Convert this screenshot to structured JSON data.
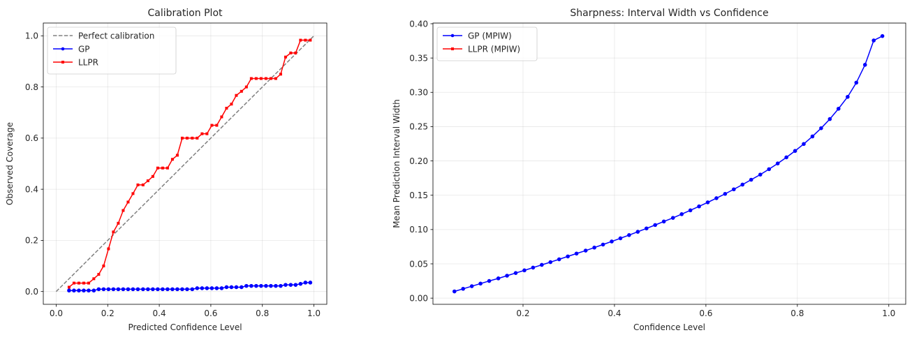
{
  "chart_data": [
    {
      "type": "line",
      "title": "Calibration Plot",
      "xlabel": "Predicted Confidence Level",
      "ylabel": "Observed Coverage",
      "xlim": [
        -0.05,
        1.05
      ],
      "ylim": [
        -0.05,
        1.05
      ],
      "xticks": [
        0.0,
        0.2,
        0.4,
        0.6,
        0.8,
        1.0
      ],
      "yticks": [
        0.0,
        0.2,
        0.4,
        0.6,
        0.8,
        1.0
      ],
      "xtick_labels": [
        "0.0",
        "0.2",
        "0.4",
        "0.6",
        "0.8",
        "1.0"
      ],
      "ytick_labels": [
        "0.0",
        "0.2",
        "0.4",
        "0.6",
        "0.8",
        "1.0"
      ],
      "grid": true,
      "legend_position": "top-left",
      "series": [
        {
          "name": "Perfect calibration",
          "color": "#808080",
          "style": "dashed",
          "marker": "none",
          "x": [
            0.0,
            1.0
          ],
          "y": [
            0.0,
            1.0
          ]
        },
        {
          "name": "GP",
          "color": "#0000ff",
          "style": "solid",
          "marker": "circle",
          "x": [
            0.05,
            0.069,
            0.088,
            0.107,
            0.126,
            0.146,
            0.165,
            0.184,
            0.203,
            0.222,
            0.241,
            0.26,
            0.279,
            0.298,
            0.317,
            0.337,
            0.356,
            0.375,
            0.394,
            0.413,
            0.432,
            0.451,
            0.47,
            0.489,
            0.508,
            0.528,
            0.547,
            0.566,
            0.585,
            0.604,
            0.623,
            0.642,
            0.661,
            0.68,
            0.699,
            0.719,
            0.738,
            0.757,
            0.776,
            0.795,
            0.814,
            0.833,
            0.852,
            0.871,
            0.89,
            0.91,
            0.929,
            0.948,
            0.967,
            0.986
          ],
          "y": [
            0.004,
            0.004,
            0.004,
            0.004,
            0.004,
            0.004,
            0.009,
            0.009,
            0.009,
            0.009,
            0.009,
            0.009,
            0.009,
            0.009,
            0.009,
            0.009,
            0.009,
            0.009,
            0.009,
            0.009,
            0.009,
            0.009,
            0.009,
            0.009,
            0.009,
            0.009,
            0.013,
            0.013,
            0.013,
            0.013,
            0.013,
            0.013,
            0.017,
            0.017,
            0.017,
            0.017,
            0.022,
            0.022,
            0.022,
            0.022,
            0.022,
            0.022,
            0.022,
            0.022,
            0.026,
            0.026,
            0.026,
            0.03,
            0.035,
            0.035
          ]
        },
        {
          "name": "LLPR",
          "color": "#ff0000",
          "style": "solid",
          "marker": "square",
          "x": [
            0.05,
            0.069,
            0.088,
            0.107,
            0.126,
            0.146,
            0.165,
            0.184,
            0.203,
            0.222,
            0.241,
            0.26,
            0.279,
            0.298,
            0.317,
            0.337,
            0.356,
            0.375,
            0.394,
            0.413,
            0.432,
            0.451,
            0.47,
            0.489,
            0.508,
            0.528,
            0.547,
            0.566,
            0.585,
            0.604,
            0.623,
            0.642,
            0.661,
            0.68,
            0.699,
            0.719,
            0.738,
            0.757,
            0.776,
            0.795,
            0.814,
            0.833,
            0.852,
            0.871,
            0.89,
            0.91,
            0.929,
            0.948,
            0.967,
            0.986
          ],
          "y": [
            0.017,
            0.033,
            0.033,
            0.033,
            0.033,
            0.05,
            0.067,
            0.1,
            0.167,
            0.233,
            0.267,
            0.317,
            0.35,
            0.383,
            0.417,
            0.417,
            0.433,
            0.45,
            0.483,
            0.483,
            0.483,
            0.517,
            0.533,
            0.6,
            0.6,
            0.6,
            0.6,
            0.617,
            0.617,
            0.65,
            0.65,
            0.683,
            0.717,
            0.733,
            0.767,
            0.783,
            0.8,
            0.833,
            0.833,
            0.833,
            0.833,
            0.833,
            0.833,
            0.85,
            0.917,
            0.933,
            0.933,
            0.983,
            0.983,
            0.983
          ]
        }
      ]
    },
    {
      "type": "line",
      "title": "Sharpness: Interval Width vs Confidence",
      "xlabel": "Confidence Level",
      "ylabel": "Mean Prediction Interval Width",
      "xlim": [
        0.003,
        1.037
      ],
      "ylim": [
        -0.009,
        0.401
      ],
      "xticks": [
        0.2,
        0.4,
        0.6,
        0.8,
        1.0
      ],
      "yticks": [
        0.0,
        0.05,
        0.1,
        0.15,
        0.2,
        0.25,
        0.3,
        0.35,
        0.4
      ],
      "xtick_labels": [
        "0.2",
        "0.4",
        "0.6",
        "0.8",
        "1.0"
      ],
      "ytick_labels": [
        "0.00",
        "0.05",
        "0.10",
        "0.15",
        "0.20",
        "0.25",
        "0.30",
        "0.35",
        "0.40"
      ],
      "grid": true,
      "legend_position": "top-left",
      "series": [
        {
          "name": "GP (MPIW)",
          "color": "#0000ff",
          "style": "solid",
          "marker": "circle",
          "x": [
            0.05,
            0.069,
            0.088,
            0.107,
            0.126,
            0.146,
            0.165,
            0.184,
            0.203,
            0.222,
            0.241,
            0.26,
            0.279,
            0.298,
            0.317,
            0.337,
            0.356,
            0.375,
            0.394,
            0.413,
            0.432,
            0.451,
            0.47,
            0.489,
            0.508,
            0.528,
            0.547,
            0.566,
            0.585,
            0.604,
            0.623,
            0.642,
            0.661,
            0.68,
            0.699,
            0.719,
            0.738,
            0.757,
            0.776,
            0.795,
            0.814,
            0.833,
            0.852,
            0.871,
            0.89,
            0.91,
            0.929,
            0.948,
            0.967,
            0.986
          ],
          "y": [
            0.0098,
            0.0136,
            0.0174,
            0.0212,
            0.025,
            0.0288,
            0.0327,
            0.0366,
            0.0405,
            0.0445,
            0.0485,
            0.0525,
            0.0566,
            0.0608,
            0.065,
            0.0693,
            0.0737,
            0.0781,
            0.0826,
            0.0872,
            0.0919,
            0.0967,
            0.1016,
            0.1066,
            0.1117,
            0.117,
            0.1224,
            0.128,
            0.1337,
            0.1396,
            0.1457,
            0.152,
            0.1586,
            0.1655,
            0.1726,
            0.1801,
            0.188,
            0.1963,
            0.2052,
            0.2146,
            0.2247,
            0.2357,
            0.2477,
            0.261,
            0.2761,
            0.2934,
            0.3141,
            0.3401,
            0.3756,
            0.382
          ]
        },
        {
          "name": "LLPR (MPIW)",
          "color": "#ff0000",
          "style": "solid",
          "marker": "square",
          "x": [],
          "y": []
        }
      ]
    }
  ]
}
